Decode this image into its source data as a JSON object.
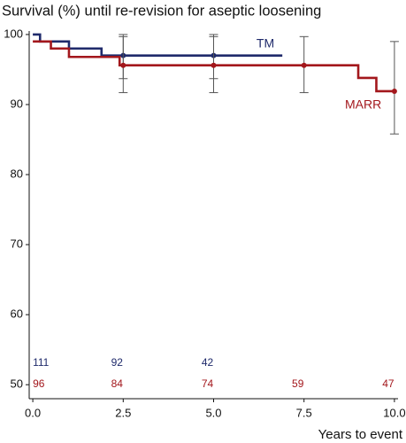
{
  "chart_data": {
    "type": "step",
    "title": "Survival (%) until re-revision for aseptic loosening",
    "x_label": "Years to event",
    "xlim": [
      -0.1,
      10.1
    ],
    "xticks": [
      {
        "value": 0,
        "label": "0.0"
      },
      2.5,
      {
        "value": 5,
        "label": "5.0"
      },
      7.5,
      {
        "value": 10,
        "label": "10.0"
      }
    ],
    "ylim": [
      48,
      100.5
    ],
    "yticks": [
      50,
      60,
      70,
      80,
      90,
      100
    ],
    "grid": false,
    "series": [
      {
        "name": "TM",
        "color": "#1f2a6b",
        "x": [
          0,
          0.2,
          1.0,
          1.9,
          6.9
        ],
        "values": [
          100,
          99,
          98,
          97,
          97
        ],
        "ci": [
          {
            "x": 2.5,
            "value": 97,
            "lower": 93.7,
            "upper": 100
          },
          {
            "x": 5.0,
            "value": 97,
            "lower": 93.7,
            "upper": 100
          }
        ],
        "at_risk_x": [
          0,
          2.5,
          5.0
        ],
        "at_risk": [
          111,
          92,
          42
        ]
      },
      {
        "name": "MARR",
        "color": "#a3171c",
        "x": [
          0,
          0.5,
          1.0,
          2.4,
          9.0,
          9.5,
          10.0
        ],
        "values": [
          99,
          98,
          96.8,
          95.6,
          93.8,
          91.9,
          91.9
        ],
        "ci": [
          {
            "x": 2.5,
            "value": 95.6,
            "lower": 91.7,
            "upper": 99.7
          },
          {
            "x": 5.0,
            "value": 95.6,
            "lower": 91.7,
            "upper": 99.7
          },
          {
            "x": 7.5,
            "value": 95.6,
            "lower": 91.7,
            "upper": 99.7
          },
          {
            "x": 10.0,
            "value": 91.9,
            "lower": 85.8,
            "upper": 99
          }
        ],
        "at_risk_x": [
          0,
          2.5,
          5.0,
          7.5,
          10.0
        ],
        "at_risk": [
          96,
          84,
          74,
          59,
          47
        ]
      }
    ]
  }
}
